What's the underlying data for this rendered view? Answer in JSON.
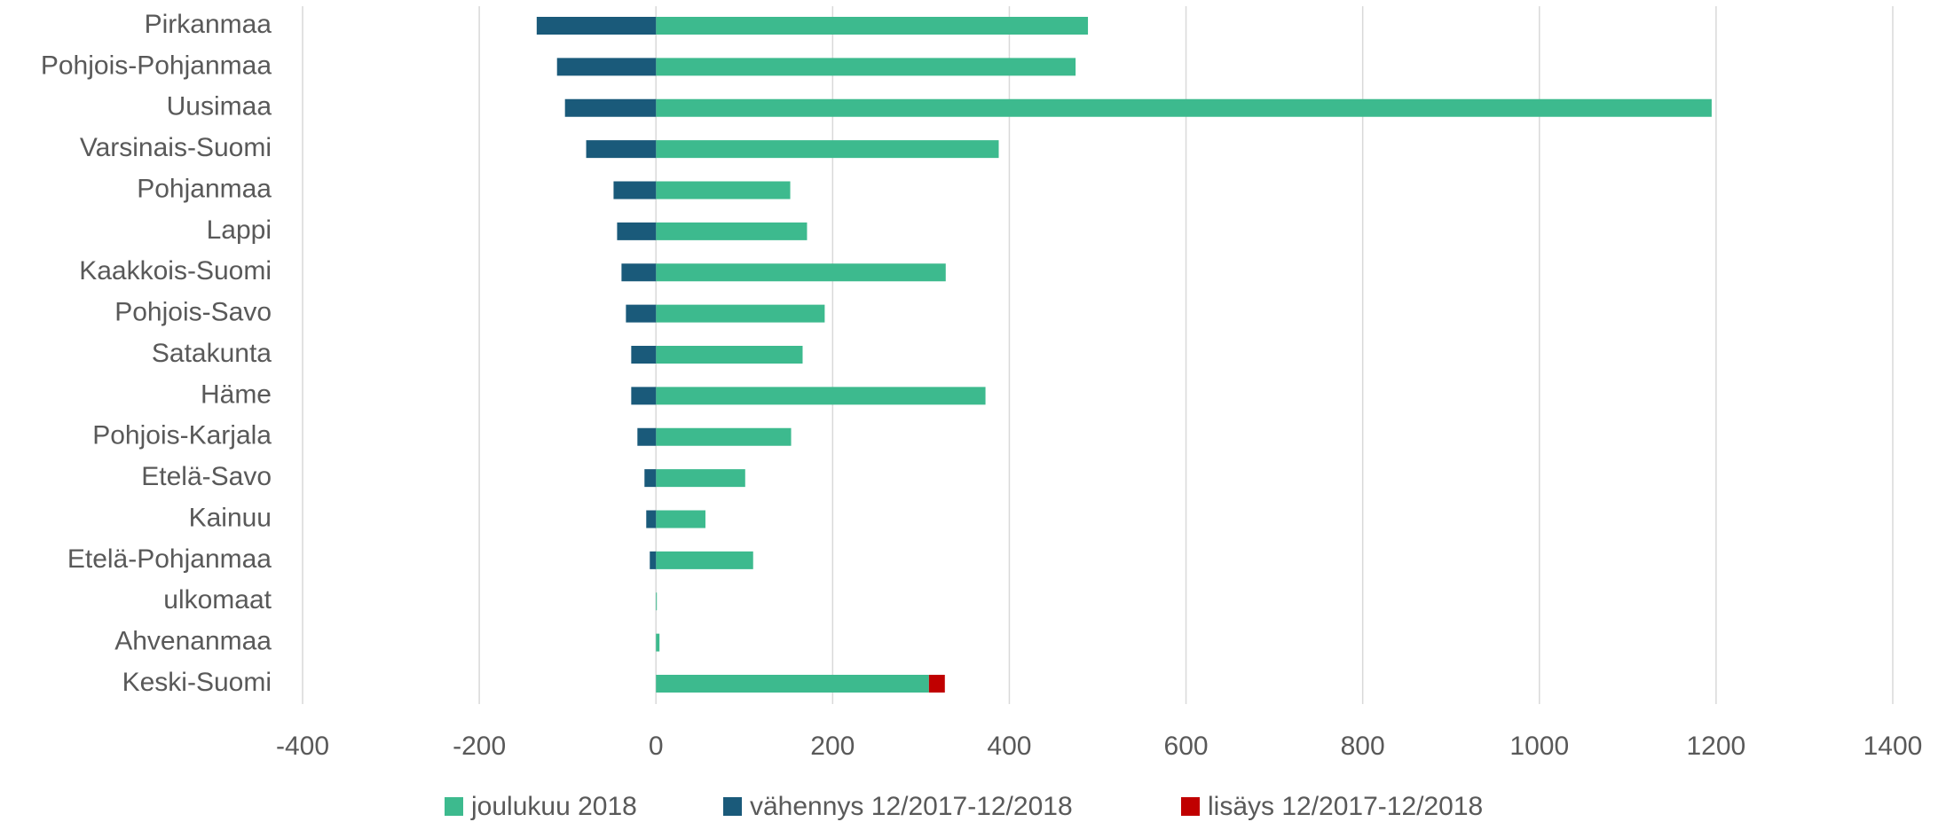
{
  "chart_data": {
    "type": "bar",
    "orientation": "horizontal",
    "stacked": true,
    "categories": [
      "Pirkanmaa",
      "Pohjois-Pohjanmaa",
      "Uusimaa",
      "Varsinais-Suomi",
      "Pohjanmaa",
      "Lappi",
      "Kaakkois-Suomi",
      "Pohjois-Savo",
      "Satakunta",
      "Häme",
      "Pohjois-Karjala",
      "Etelä-Savo",
      "Kainuu",
      "Etelä-Pohjanmaa",
      "ulkomaat",
      "Ahvenanmaa",
      "Keski-Suomi"
    ],
    "series": [
      {
        "name": "joulukuu 2018",
        "color": "#3dba8e",
        "values": [
          489,
          475,
          1195,
          388,
          152,
          171,
          328,
          191,
          166,
          373,
          153,
          101,
          56,
          110,
          0,
          4,
          309
        ]
      },
      {
        "name": "vähennys 12/2017-12/2018",
        "color": "#1a5a7a",
        "values": [
          -135,
          -112,
          -103,
          -79,
          -48,
          -44,
          -39,
          -34,
          -28,
          -28,
          -21,
          -13,
          -11,
          -7,
          null,
          null,
          null
        ]
      },
      {
        "name": "lisäys 12/2017-12/2018",
        "color": "#c00000",
        "values": [
          null,
          null,
          null,
          null,
          null,
          null,
          null,
          null,
          null,
          null,
          null,
          null,
          null,
          null,
          null,
          null,
          18
        ]
      }
    ],
    "xlim": [
      -400,
      1400
    ],
    "xticks": [
      -400,
      -200,
      0,
      200,
      400,
      600,
      800,
      1000,
      1200,
      1400
    ],
    "grid": true,
    "legend": "bottom"
  }
}
